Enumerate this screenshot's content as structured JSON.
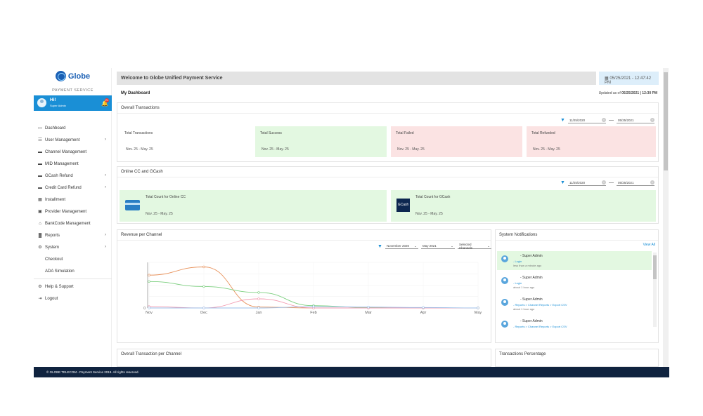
{
  "brand": {
    "name": "Globe",
    "subtitle": "PAYMENT SERVICE"
  },
  "user": {
    "greeting": "Hi!",
    "role": "Super Admin",
    "notifications": "21"
  },
  "nav": [
    {
      "label": "Dashboard",
      "icon": "monitor-icon"
    },
    {
      "label": "User Management",
      "icon": "users-icon",
      "chevron": true
    },
    {
      "label": "Channel Management",
      "icon": "card-icon"
    },
    {
      "label": "MID Management",
      "icon": "card-icon"
    },
    {
      "label": "GCash Refund",
      "icon": "card-icon",
      "chevron": true
    },
    {
      "label": "Credit Card Refund",
      "icon": "card-icon",
      "chevron": true
    },
    {
      "label": "Installment",
      "icon": "calendar-icon"
    },
    {
      "label": "Provider Management",
      "icon": "building-icon"
    },
    {
      "label": "BankCode Management",
      "icon": "bank-icon"
    },
    {
      "label": "Reports",
      "icon": "bar-chart-icon",
      "chevron": true
    },
    {
      "label": "System",
      "icon": "gear-icon",
      "chevron": true
    },
    {
      "label": "Checkout",
      "icon": ""
    },
    {
      "label": "ADA Simulation",
      "icon": ""
    }
  ],
  "nav_bottom": [
    {
      "label": "Help & Support",
      "icon": "help-icon"
    },
    {
      "label": "Logout",
      "icon": "logout-icon"
    }
  ],
  "header": {
    "welcome": "Welcome to Globe Unified Payment Service",
    "datetime": "05/25/2021 - 12:47:42 PM",
    "title": "My Dashboard",
    "updated_prefix": "Updated as of",
    "updated_value": "05/25/2021 | 12:30 PM"
  },
  "overall": {
    "title": "Overall Transactions",
    "date_from": "11/25/2020",
    "date_to": "05/25/2021",
    "stats": [
      {
        "label": "Total Transactions",
        "range": "Nov. 25 - May. 25"
      },
      {
        "label": "Total Success",
        "range": "Nov. 25 - May. 25"
      },
      {
        "label": "Total Failed",
        "range": "Nov. 25 - May. 25"
      },
      {
        "label": "Total Refunded",
        "range": "Nov. 25 - May. 25"
      }
    ]
  },
  "online": {
    "title": "Online CC and GCash",
    "date_from": "11/25/2020",
    "date_to": "05/25/2021",
    "cc_label": "Total Count for Online CC",
    "cc_range": "Nov. 25 - May. 25",
    "gcash_label": "Total Count for GCash",
    "gcash_range": "Nov. 25 - May. 25",
    "gcash_logo": "GCash"
  },
  "revenue": {
    "title": "Revenue per Channel",
    "from_month": "November 2020",
    "to_month": "May 2021",
    "channels": "Selected Channels"
  },
  "chart_data": {
    "type": "line",
    "categories": [
      "Nov",
      "Dec",
      "Jan",
      "Feb",
      "Mar",
      "Apr",
      "May"
    ],
    "series": [
      {
        "values": [
          0.72,
          0.9,
          0.02,
          0.0,
          0.0,
          0.0,
          0.0
        ],
        "color": "#e8915a"
      },
      {
        "values": [
          0.58,
          0.47,
          0.34,
          0.05,
          0.01,
          0.0,
          0.0
        ],
        "color": "#7ccf7f"
      },
      {
        "values": [
          0.03,
          0.0,
          0.2,
          0.0,
          0.0,
          0.0,
          0.0
        ],
        "color": "#f29ab0"
      },
      {
        "values": [
          0.0,
          0.0,
          0.0,
          0.03,
          0.02,
          0.01,
          0.0
        ],
        "color": "#9bbfe8"
      }
    ],
    "tick_label": "0"
  },
  "notifications": {
    "title": "System Notifications",
    "view_all": "View All",
    "items": [
      {
        "user": "- Super Admin",
        "action": "- Login",
        "time": "less than a minute ago",
        "highlight": true
      },
      {
        "user": "- Super Admin",
        "action": "- Login",
        "time": "about 1 hour ago",
        "highlight": false
      },
      {
        "user": "- Super Admin",
        "action": "- Reports > Channel Reports > Export CSV",
        "time": "about 1 hour ago",
        "highlight": false
      },
      {
        "user": "- Super Admin",
        "action": "- Reports > Channel Reports > Export CSV",
        "time": "",
        "highlight": false
      }
    ]
  },
  "bottom_cards": {
    "left": "Overall Transaction per Channel",
    "right": "Transactions Percentage"
  },
  "footer": "© GLOBE TELECOM - Payment Service 2019. All rights reserved."
}
